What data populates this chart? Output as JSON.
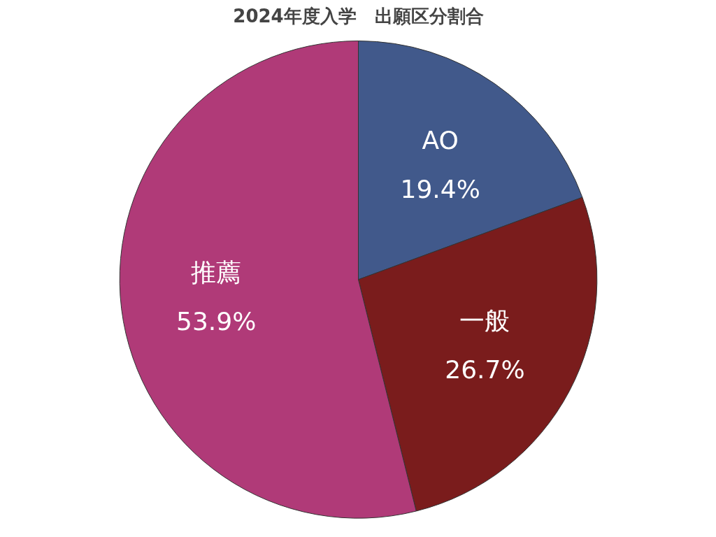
{
  "chart_data": {
    "type": "pie",
    "title": "2024年度入学　出願区分割合",
    "categories": [
      "AO",
      "一般",
      "推薦"
    ],
    "values": [
      19.4,
      26.7,
      53.9
    ],
    "value_labels": [
      "19.4%",
      "26.7%",
      "53.9%"
    ],
    "colors": [
      "#41598b",
      "#7a1c1c",
      "#b03a78"
    ]
  }
}
